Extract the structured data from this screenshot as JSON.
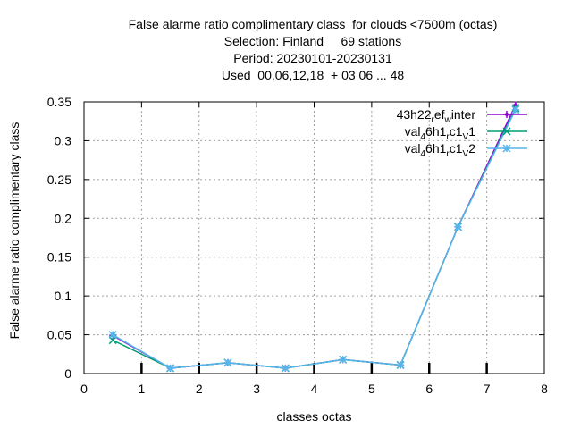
{
  "chart_data": {
    "type": "line",
    "title_lines": [
      "False alarme ratio complimentary class  for clouds <7500m (octas)",
      "Selection: Finland     69 stations",
      "Period: 20230101-20230131",
      "Used  00,06,12,18  + 03 06 ... 48"
    ],
    "xlabel": "classes octas",
    "ylabel": "False alarme ratio complimentary class",
    "xlim": [
      0,
      8
    ],
    "ylim": [
      0,
      0.35
    ],
    "xticks": [
      "0",
      "1",
      "2",
      "3",
      "4",
      "5",
      "6",
      "7",
      "8"
    ],
    "yticks": [
      "0",
      "0.05",
      "0.1",
      "0.15",
      "0.2",
      "0.25",
      "0.3",
      "0.35"
    ],
    "grid": true,
    "legend_position": "top-right",
    "x": [
      0.5,
      1.5,
      2.5,
      3.5,
      4.5,
      5.5,
      6.5,
      7.5
    ],
    "series": [
      {
        "name_parts": [
          [
            "43h22",
            "n"
          ],
          [
            "r",
            "sub"
          ],
          [
            "ef",
            "n"
          ],
          [
            "w",
            "sub"
          ],
          [
            "inter",
            "n"
          ]
        ],
        "color": "#9400d3",
        "marker": "plus",
        "values": [
          0.049,
          0.007,
          0.014,
          0.007,
          0.018,
          0.011,
          0.189,
          0.346
        ]
      },
      {
        "name_parts": [
          [
            "val",
            "n"
          ],
          [
            "4",
            "sub"
          ],
          [
            "6h1",
            "n"
          ],
          [
            "r",
            "sub"
          ],
          [
            "c1",
            "n"
          ],
          [
            "V",
            "sub"
          ],
          [
            "1",
            "n"
          ]
        ],
        "color": "#009e73",
        "marker": "cross",
        "values": [
          0.043,
          0.007,
          0.014,
          0.007,
          0.018,
          0.011,
          0.189,
          0.342
        ]
      },
      {
        "name_parts": [
          [
            "val",
            "n"
          ],
          [
            "4",
            "sub"
          ],
          [
            "6h1",
            "n"
          ],
          [
            "r",
            "sub"
          ],
          [
            "c1",
            "n"
          ],
          [
            "V",
            "sub"
          ],
          [
            "2",
            "n"
          ]
        ],
        "color": "#56b4e9",
        "marker": "star",
        "values": [
          0.05,
          0.007,
          0.014,
          0.007,
          0.018,
          0.011,
          0.189,
          0.34
        ]
      }
    ]
  }
}
